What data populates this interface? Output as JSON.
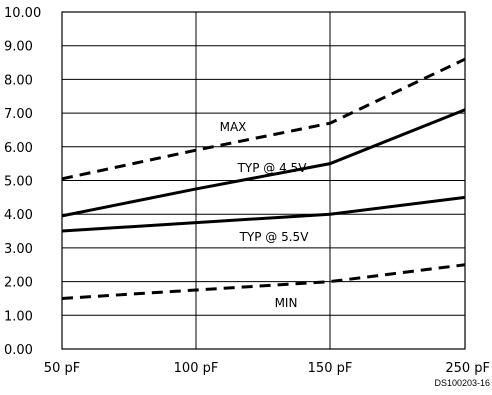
{
  "chart_data": {
    "type": "line",
    "x_tick_labels": [
      "50 pF",
      "100 pF",
      "150 pF",
      "250 pF"
    ],
    "x_values": [
      50,
      100,
      150,
      250
    ],
    "y_tick_labels": [
      "0.00",
      "1.00",
      "2.00",
      "3.00",
      "4.00",
      "5.00",
      "6.00",
      "7.00",
      "8.00",
      "9.00",
      "10.00"
    ],
    "ylim": [
      0,
      10
    ],
    "grid": true,
    "series": [
      {
        "name": "MAX",
        "style": "dashed",
        "values": [
          5.05,
          5.9,
          6.7,
          8.6
        ]
      },
      {
        "name": "TYP @ 4.5V",
        "style": "solid",
        "values": [
          3.95,
          4.75,
          5.5,
          7.1
        ]
      },
      {
        "name": "TYP @ 5.5V",
        "style": "solid",
        "values": [
          3.5,
          3.75,
          4.0,
          4.5
        ]
      },
      {
        "name": "MIN",
        "style": "dashed",
        "values": [
          1.5,
          1.75,
          2.0,
          2.5
        ]
      }
    ],
    "footer_code": "DS100203-16"
  }
}
